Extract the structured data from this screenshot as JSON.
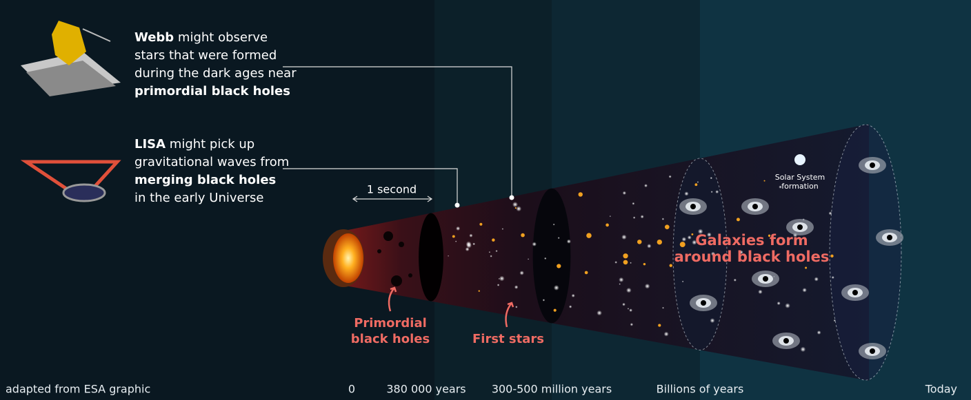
{
  "callouts": [
    {
      "lines": [
        {
          "bold": "Webb",
          "text": " might observe"
        },
        {
          "text": "stars that were formed"
        },
        {
          "text": "during the dark ages near"
        },
        {
          "bold": "primordial black holes"
        }
      ]
    },
    {
      "lines": [
        {
          "bold": "LISA",
          "text": " might pick up"
        },
        {
          "text": "gravitational waves from"
        },
        {
          "bold": "merging black holes"
        },
        {
          "text": "in the early Universe"
        }
      ]
    }
  ],
  "duration_label": "1 second",
  "stages": {
    "primordial": [
      "Primordial",
      "black holes"
    ],
    "first_stars": "First stars",
    "galaxies": [
      "Galaxies form",
      "around black holes"
    ],
    "solar_system": [
      "Solar System",
      "formation"
    ]
  },
  "credit": "adapted from ESA graphic",
  "timeline": [
    "0",
    "380 000 years",
    "300-500 million years",
    "Billions of years",
    "Today"
  ]
}
